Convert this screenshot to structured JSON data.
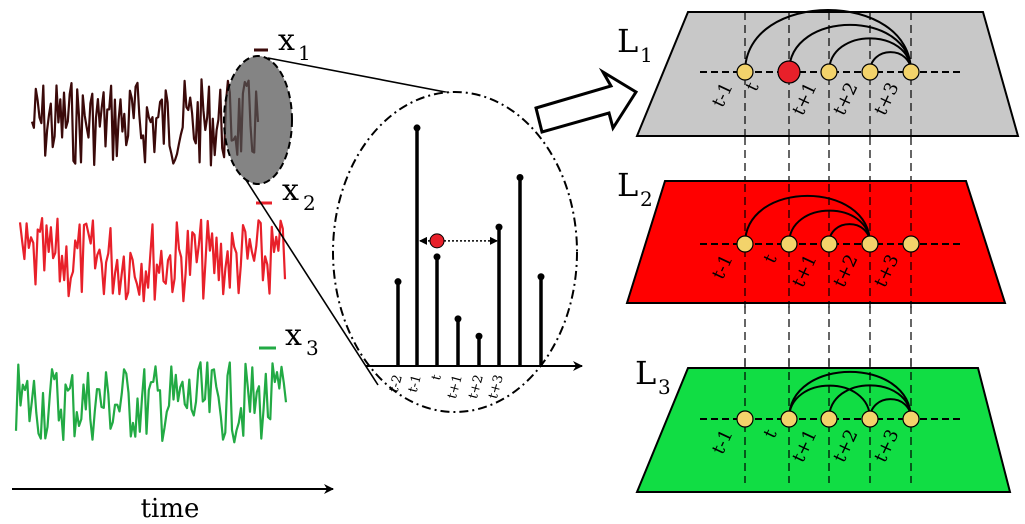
{
  "time_axis": {
    "label": "time"
  },
  "series": [
    {
      "name": "x",
      "sub": "1",
      "color": "#3b0a0a"
    },
    {
      "name": "x",
      "sub": "2",
      "color": "#e8202a"
    },
    {
      "name": "x",
      "sub": "3",
      "color": "#22aa44"
    }
  ],
  "zoom": {
    "ticks": [
      "t-2",
      "t-1",
      "t",
      "t+1",
      "t+2",
      "t+3"
    ],
    "stem_values": [
      0.34,
      0.96,
      0.44,
      0.19,
      0.12,
      0.56,
      0.76,
      0.36
    ],
    "marker_color": "#e8202a"
  },
  "layers": [
    {
      "label": "L",
      "sub": "1",
      "fill": "#c8c8c8",
      "nodes": [
        "t-1",
        "t",
        "t+1",
        "t+2",
        "t+3"
      ],
      "highlight_node": 1,
      "arcs": [
        [
          0,
          4
        ],
        [
          1,
          4
        ],
        [
          2,
          4
        ],
        [
          3,
          4
        ]
      ]
    },
    {
      "label": "L",
      "sub": "2",
      "fill": "#ff0000",
      "nodes": [
        "t-1",
        "t",
        "t+1",
        "t+2",
        "t+3"
      ],
      "highlight_node": -1,
      "arcs": [
        [
          0,
          3
        ],
        [
          1,
          3
        ],
        [
          2,
          3
        ]
      ]
    },
    {
      "label": "L",
      "sub": "3",
      "fill": "#11dd44",
      "nodes": [
        "t-1",
        "t",
        "t+1",
        "t+2",
        "t+3"
      ],
      "highlight_node": -1,
      "arcs": [
        [
          1,
          4
        ],
        [
          1,
          3
        ],
        [
          2,
          4
        ],
        [
          3,
          4
        ]
      ]
    }
  ],
  "colors": {
    "node": "#f3d36b",
    "node_highlight": "#e8202a",
    "zoom_ellipse": "#555555"
  }
}
